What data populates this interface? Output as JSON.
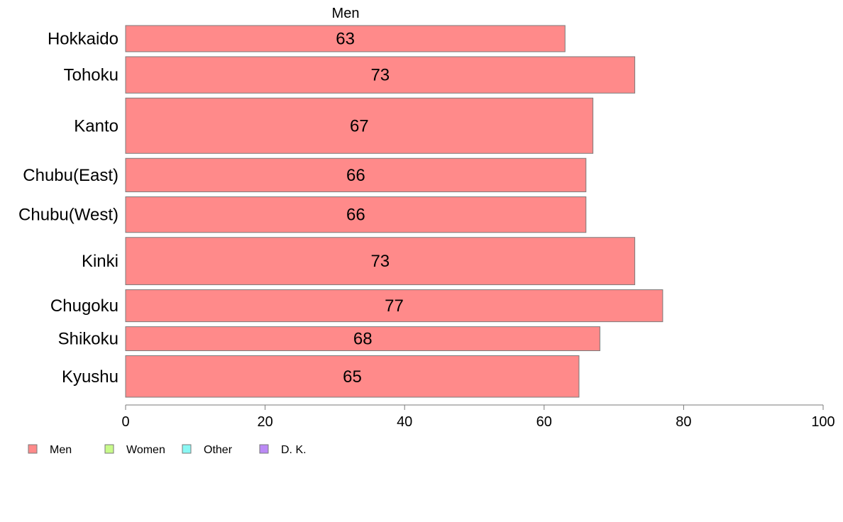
{
  "chart_data": {
    "type": "bar",
    "orientation": "horizontal",
    "panel_label": "Men",
    "categories": [
      "Hokkaido",
      "Tohoku",
      "Kanto",
      "Chubu(East)",
      "Chubu(West)",
      "Kinki",
      "Chugoku",
      "Shikoku",
      "Kyushu"
    ],
    "series": [
      {
        "name": "Men",
        "values": [
          63,
          73,
          67,
          66,
          66,
          73,
          77,
          68,
          65
        ],
        "value_labels": [
          "63",
          "73",
          "67",
          "66",
          "66",
          "73",
          "77",
          "68",
          "65"
        ],
        "color": "#ff8a8a"
      }
    ],
    "relative_bar_widths": [
      36,
      50,
      76,
      46,
      49,
      65,
      44,
      33,
      57
    ],
    "xlim": [
      0,
      100
    ],
    "x_ticks": [
      "0",
      "20",
      "40",
      "60",
      "80",
      "100"
    ],
    "grid": false,
    "legend": {
      "placement": "bottom-left",
      "items": [
        {
          "label": "Men",
          "color": "#ff8a8a"
        },
        {
          "label": "Women",
          "color": "#c8fa8a"
        },
        {
          "label": "Other",
          "color": "#8af8f4"
        },
        {
          "label": "D. K.",
          "color": "#bb8af6"
        }
      ]
    }
  }
}
